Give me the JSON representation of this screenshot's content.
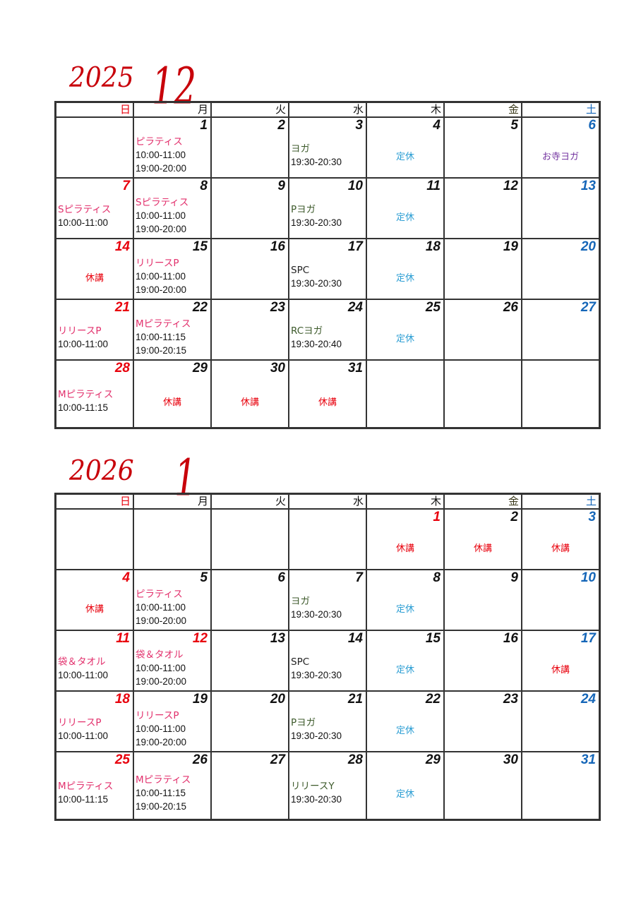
{
  "colors": {
    "title": "#c8000a",
    "sunday": "#e8000c",
    "saturday": "#1566b8",
    "class_label": "#e2306c",
    "yoga_label": "#3d5a2b",
    "regular_holiday": "#2a9dd3",
    "temple_yoga": "#7435a0",
    "cancelled": "#e8000c"
  },
  "weekdays": [
    {
      "t": "日",
      "c": "red"
    },
    {
      "t": "月",
      "c": "black"
    },
    {
      "t": "火",
      "c": "black"
    },
    {
      "t": "水",
      "c": "black"
    },
    {
      "t": "木",
      "c": "black"
    },
    {
      "t": "金",
      "c": "olive"
    },
    {
      "t": "土",
      "c": "blue"
    }
  ],
  "months": [
    {
      "year": "2025",
      "month": "12",
      "weeks": [
        [
          {},
          {
            "d": "1",
            "dc": "black",
            "label": "ピラティス",
            "lc": "pink",
            "times": [
              "10:00-11:00",
              "19:00-20:00"
            ]
          },
          {
            "d": "2",
            "dc": "black"
          },
          {
            "d": "3",
            "dc": "black",
            "label": "ヨガ",
            "lc": "green",
            "times": [
              "19:30-20:30"
            ]
          },
          {
            "d": "4",
            "dc": "black",
            "note": "定休",
            "nc": "cyan"
          },
          {
            "d": "5",
            "dc": "black"
          },
          {
            "d": "6",
            "dc": "blue",
            "note": "お寺ヨガ",
            "nc": "purple"
          }
        ],
        [
          {
            "d": "7",
            "dc": "red",
            "label": "Sピラティス",
            "lc": "pink",
            "times": [
              "10:00-11:00"
            ]
          },
          {
            "d": "8",
            "dc": "black",
            "label": "Sピラティス",
            "lc": "pink",
            "times": [
              "10:00-11:00",
              "19:00-20:00"
            ]
          },
          {
            "d": "9",
            "dc": "black"
          },
          {
            "d": "10",
            "dc": "black",
            "label": "Pヨガ",
            "lc": "green",
            "times": [
              "19:30-20:30"
            ]
          },
          {
            "d": "11",
            "dc": "black",
            "note": "定休",
            "nc": "cyan"
          },
          {
            "d": "12",
            "dc": "black"
          },
          {
            "d": "13",
            "dc": "blue"
          }
        ],
        [
          {
            "d": "14",
            "dc": "red",
            "note": "休講",
            "nc": "red"
          },
          {
            "d": "15",
            "dc": "black",
            "label": "リリースP",
            "lc": "pink",
            "times": [
              "10:00-11:00",
              "19:00-20:00"
            ]
          },
          {
            "d": "16",
            "dc": "black"
          },
          {
            "d": "17",
            "dc": "black",
            "label": "SPC",
            "lc": "dark",
            "times": [
              "19:30-20:30"
            ]
          },
          {
            "d": "18",
            "dc": "black",
            "note": "定休",
            "nc": "cyan"
          },
          {
            "d": "19",
            "dc": "black"
          },
          {
            "d": "20",
            "dc": "blue"
          }
        ],
        [
          {
            "d": "21",
            "dc": "red",
            "label": "リリースP",
            "lc": "pink",
            "times": [
              "10:00-11:00"
            ]
          },
          {
            "d": "22",
            "dc": "black",
            "label": "Mピラティス",
            "lc": "pink",
            "times": [
              "10:00-11:15",
              "19:00-20:15"
            ]
          },
          {
            "d": "23",
            "dc": "black"
          },
          {
            "d": "24",
            "dc": "black",
            "label": "RCヨガ",
            "lc": "green",
            "times": [
              "19:30-20:40"
            ]
          },
          {
            "d": "25",
            "dc": "black",
            "note": "定休",
            "nc": "cyan"
          },
          {
            "d": "26",
            "dc": "black"
          },
          {
            "d": "27",
            "dc": "blue"
          }
        ],
        [
          {
            "d": "28",
            "dc": "red",
            "label": "Mピラティス",
            "lc": "pink",
            "times": [
              "10:00-11:15"
            ]
          },
          {
            "d": "29",
            "dc": "black",
            "note": "休講",
            "nc": "red"
          },
          {
            "d": "30",
            "dc": "black",
            "note": "休講",
            "nc": "red"
          },
          {
            "d": "31",
            "dc": "black",
            "note": "休講",
            "nc": "red"
          },
          {},
          {},
          {}
        ]
      ]
    },
    {
      "year": "2026",
      "month": "1",
      "weeks": [
        [
          {},
          {},
          {},
          {},
          {
            "d": "1",
            "dc": "red",
            "note": "休講",
            "nc": "red"
          },
          {
            "d": "2",
            "dc": "black",
            "note": "休講",
            "nc": "red"
          },
          {
            "d": "3",
            "dc": "blue",
            "note": "休講",
            "nc": "red"
          }
        ],
        [
          {
            "d": "4",
            "dc": "red",
            "note": "休講",
            "nc": "red"
          },
          {
            "d": "5",
            "dc": "black",
            "label": "ピラティス",
            "lc": "pink",
            "times": [
              "10:00-11:00",
              "19:00-20:00"
            ]
          },
          {
            "d": "6",
            "dc": "black"
          },
          {
            "d": "7",
            "dc": "black",
            "label": "ヨガ",
            "lc": "green",
            "times": [
              "19:30-20:30"
            ]
          },
          {
            "d": "8",
            "dc": "black",
            "note": "定休",
            "nc": "cyan"
          },
          {
            "d": "9",
            "dc": "black"
          },
          {
            "d": "10",
            "dc": "blue"
          }
        ],
        [
          {
            "d": "11",
            "dc": "red",
            "label": "袋＆タオル",
            "lc": "pink",
            "times": [
              "10:00-11:00"
            ]
          },
          {
            "d": "12",
            "dc": "red",
            "label": "袋＆タオル",
            "lc": "pink",
            "times": [
              "10:00-11:00",
              "19:00-20:00"
            ]
          },
          {
            "d": "13",
            "dc": "black"
          },
          {
            "d": "14",
            "dc": "black",
            "label": "SPC",
            "lc": "dark",
            "times": [
              "19:30-20:30"
            ]
          },
          {
            "d": "15",
            "dc": "black",
            "note": "定休",
            "nc": "cyan"
          },
          {
            "d": "16",
            "dc": "black"
          },
          {
            "d": "17",
            "dc": "blue",
            "note": "休講",
            "nc": "red"
          }
        ],
        [
          {
            "d": "18",
            "dc": "red",
            "label": "リリースP",
            "lc": "pink",
            "times": [
              "10:00-11:00"
            ]
          },
          {
            "d": "19",
            "dc": "black",
            "label": "リリースP",
            "lc": "pink",
            "times": [
              "10:00-11:00",
              "19:00-20:00"
            ]
          },
          {
            "d": "20",
            "dc": "black"
          },
          {
            "d": "21",
            "dc": "black",
            "label": "Pヨガ",
            "lc": "green",
            "times": [
              "19:30-20:30"
            ]
          },
          {
            "d": "22",
            "dc": "black",
            "note": "定休",
            "nc": "cyan"
          },
          {
            "d": "23",
            "dc": "black"
          },
          {
            "d": "24",
            "dc": "blue"
          }
        ],
        [
          {
            "d": "25",
            "dc": "red",
            "label": "Mピラティス",
            "lc": "pink",
            "times": [
              "10:00-11:15"
            ]
          },
          {
            "d": "26",
            "dc": "black",
            "label": "Mピラティス",
            "lc": "pink",
            "times": [
              "10:00-11:15",
              "19:00-20:15"
            ]
          },
          {
            "d": "27",
            "dc": "black"
          },
          {
            "d": "28",
            "dc": "black",
            "label": "リリースY",
            "lc": "green",
            "times": [
              "19:30-20:30"
            ]
          },
          {
            "d": "29",
            "dc": "black",
            "note": "定休",
            "nc": "cyan"
          },
          {
            "d": "30",
            "dc": "black"
          },
          {
            "d": "31",
            "dc": "blue"
          }
        ]
      ]
    }
  ]
}
